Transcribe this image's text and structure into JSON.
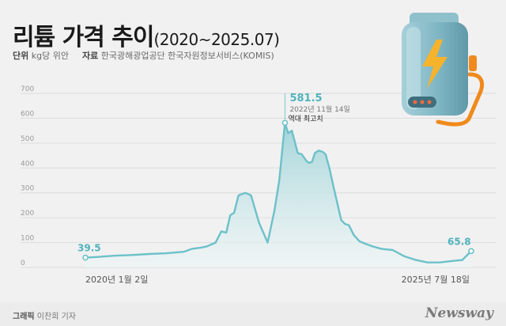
{
  "header": {
    "title_main": "리튬 가격 추이",
    "title_sub": "(2020~2025.07)",
    "unit_label": "단위",
    "unit_value": "kg당 위안",
    "source_label": "자료",
    "source_value": "한국광해광업공단 한국자원정보서비스(KOMIS)"
  },
  "footer": {
    "credit_label": "그래픽",
    "credit_value": "이찬희 기자",
    "brand": "Newsway"
  },
  "illustration": {
    "icon": "battery-lightning-icon"
  },
  "colors": {
    "line": "#6cc1c9",
    "area_top": "#9fd3d8",
    "area_bottom": "#eef6f7",
    "grid": "#dcdcdc"
  },
  "chart_data": {
    "type": "area",
    "title": "리튬 가격 추이",
    "xlabel": "",
    "ylabel": "",
    "ylim": [
      0,
      700
    ],
    "yticks": [
      0,
      100,
      200,
      300,
      400,
      500,
      600,
      700
    ],
    "x_tick_labels": [
      "2020년 1월 2일",
      "2025년 7월 18일"
    ],
    "grid": true,
    "series": [
      {
        "name": "",
        "x": [
          "2020-01-02",
          "2020-03-01",
          "2020-06-01",
          "2020-09-01",
          "2020-12-01",
          "2021-03-01",
          "2021-06-01",
          "2021-07-15",
          "2021-09-01",
          "2021-10-01",
          "2021-11-15",
          "2021-12-15",
          "2022-01-10",
          "2022-01-31",
          "2022-02-20",
          "2022-03-15",
          "2022-04-20",
          "2022-05-20",
          "2022-07-01",
          "2022-08-15",
          "2022-09-20",
          "2022-10-15",
          "2022-11-14",
          "2022-12-01",
          "2022-12-20",
          "2023-01-20",
          "2023-02-10",
          "2023-03-05",
          "2023-03-20",
          "2023-04-05",
          "2023-04-20",
          "2023-05-10",
          "2023-05-31",
          "2023-06-15",
          "2023-07-05",
          "2023-07-25",
          "2023-08-15",
          "2023-09-05",
          "2023-09-25",
          "2023-10-15",
          "2023-11-10",
          "2023-12-10",
          "2024-01-10",
          "2024-02-15",
          "2024-04-01",
          "2024-06-01",
          "2024-08-01",
          "2024-10-01",
          "2024-12-01",
          "2025-02-01",
          "2025-04-01",
          "2025-06-01",
          "2025-07-18"
        ],
        "values": [
          39.5,
          42,
          47,
          50,
          54,
          57,
          63,
          75,
          80,
          85,
          100,
          145,
          140,
          210,
          220,
          290,
          300,
          290,
          180,
          100,
          230,
          350,
          581.5,
          540,
          550,
          460,
          455,
          430,
          420,
          425,
          460,
          470,
          465,
          455,
          400,
          330,
          260,
          190,
          175,
          170,
          130,
          105,
          95,
          85,
          75,
          70,
          45,
          30,
          20,
          20,
          25,
          30,
          65.8
        ]
      }
    ],
    "annotations": [
      {
        "x": "2020-01-02",
        "y": 39.5,
        "label": "39.5"
      },
      {
        "x": "2022-11-14",
        "y": 581.5,
        "label": "581.5",
        "sublabel": "2022년 11월 14일",
        "note": "역대 최고치"
      },
      {
        "x": "2025-07-18",
        "y": 65.8,
        "label": "65.8"
      }
    ]
  }
}
